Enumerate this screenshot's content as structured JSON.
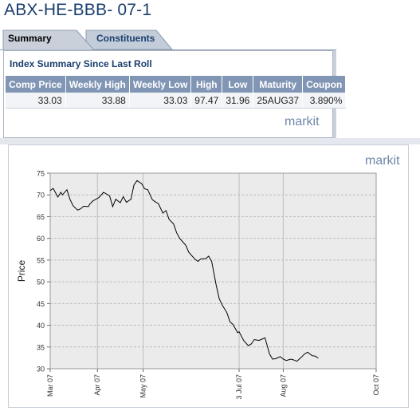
{
  "page": {
    "title": "ABX-HE-BBB- 07-1"
  },
  "tabs": [
    {
      "label": "Summary",
      "active": true
    },
    {
      "label": "Constituents",
      "active": false
    }
  ],
  "summary": {
    "heading": "Index Summary Since Last Roll",
    "columns": [
      "Comp Price",
      "Weekly High",
      "Weekly Low",
      "High",
      "Low",
      "Maturity",
      "Coupon"
    ],
    "row": [
      "33.03",
      "33.88",
      "33.03",
      "97.47",
      "31.96",
      "25AUG37",
      "3.890%"
    ],
    "logo_text": "markit"
  },
  "chart": {
    "logo_text": "markit"
  },
  "colors": {
    "title": "#1a3e6e",
    "header_bg": "#8195b5",
    "plot_bg": "#ebebeb",
    "line": "#000000",
    "logo": "#6d87a8",
    "logo_dot": "#f29a1f"
  },
  "chart_data": {
    "type": "line",
    "title": "",
    "xlabel": "",
    "ylabel": "Price",
    "ylim": [
      30,
      75
    ],
    "yticks": [
      30,
      35,
      40,
      45,
      50,
      55,
      60,
      65,
      70,
      75
    ],
    "xlim": [
      "2007-03-01",
      "2007-10-01"
    ],
    "xticks": [
      {
        "date": "2007-03-01",
        "label": "Mar 07"
      },
      {
        "date": "2007-04-01",
        "label": "Apr 07"
      },
      {
        "date": "2007-05-01",
        "label": "May 07"
      },
      {
        "date": "2007-07-03",
        "label": "3 Jul 07"
      },
      {
        "date": "2007-08-01",
        "label": "Aug 07"
      },
      {
        "date": "2007-10-01",
        "label": "Oct 07"
      }
    ],
    "grid": true,
    "series": [
      {
        "x": [
          "2007-03-01",
          "2007-03-03",
          "2007-03-06",
          "2007-03-08",
          "2007-03-09",
          "2007-03-12",
          "2007-03-14",
          "2007-03-16",
          "2007-03-19",
          "2007-03-21",
          "2007-03-23",
          "2007-03-26",
          "2007-03-27",
          "2007-03-29",
          "2007-04-02",
          "2007-04-05",
          "2007-04-09",
          "2007-04-11",
          "2007-04-13",
          "2007-04-16",
          "2007-04-18",
          "2007-04-20",
          "2007-04-23",
          "2007-04-25",
          "2007-04-27",
          "2007-04-30",
          "2007-05-02",
          "2007-05-04",
          "2007-05-07",
          "2007-05-09",
          "2007-05-11",
          "2007-05-14",
          "2007-05-16",
          "2007-05-18",
          "2007-05-21",
          "2007-05-23",
          "2007-05-25",
          "2007-05-29",
          "2007-05-31",
          "2007-06-04",
          "2007-06-06",
          "2007-06-08",
          "2007-06-11",
          "2007-06-13",
          "2007-06-15",
          "2007-06-18",
          "2007-06-20",
          "2007-06-22",
          "2007-06-25",
          "2007-06-27",
          "2007-06-29",
          "2007-07-02",
          "2007-07-03",
          "2007-07-06",
          "2007-07-09",
          "2007-07-11",
          "2007-07-13",
          "2007-07-16",
          "2007-07-18",
          "2007-07-20",
          "2007-07-23",
          "2007-07-25",
          "2007-07-27",
          "2007-07-30",
          "2007-08-01",
          "2007-08-03",
          "2007-08-06",
          "2007-08-08",
          "2007-08-10",
          "2007-08-13",
          "2007-08-15",
          "2007-08-17",
          "2007-08-20",
          "2007-08-22",
          "2007-08-24"
        ],
        "values": [
          71.0,
          71.5,
          69.5,
          70.6,
          70.0,
          71.2,
          69.0,
          67.5,
          66.5,
          66.8,
          67.4,
          67.3,
          67.9,
          68.6,
          69.4,
          70.6,
          69.8,
          67.3,
          69.0,
          68.2,
          69.6,
          68.3,
          69.0,
          72.3,
          73.3,
          72.6,
          71.4,
          71.2,
          68.9,
          68.4,
          68.0,
          65.8,
          66.4,
          64.4,
          63.3,
          61.3,
          60.0,
          58.4,
          56.8,
          55.2,
          54.7,
          55.3,
          55.3,
          55.9,
          54.7,
          49.2,
          46.1,
          44.6,
          42.9,
          40.8,
          40.2,
          38.3,
          38.5,
          36.5,
          35.3,
          35.7,
          36.7,
          36.5,
          36.8,
          37.1,
          33.4,
          32.2,
          32.3,
          32.8,
          32.2,
          31.9,
          32.2,
          32.0,
          31.7,
          32.7,
          33.4,
          33.8,
          33.0,
          32.9,
          32.4
        ]
      }
    ]
  }
}
